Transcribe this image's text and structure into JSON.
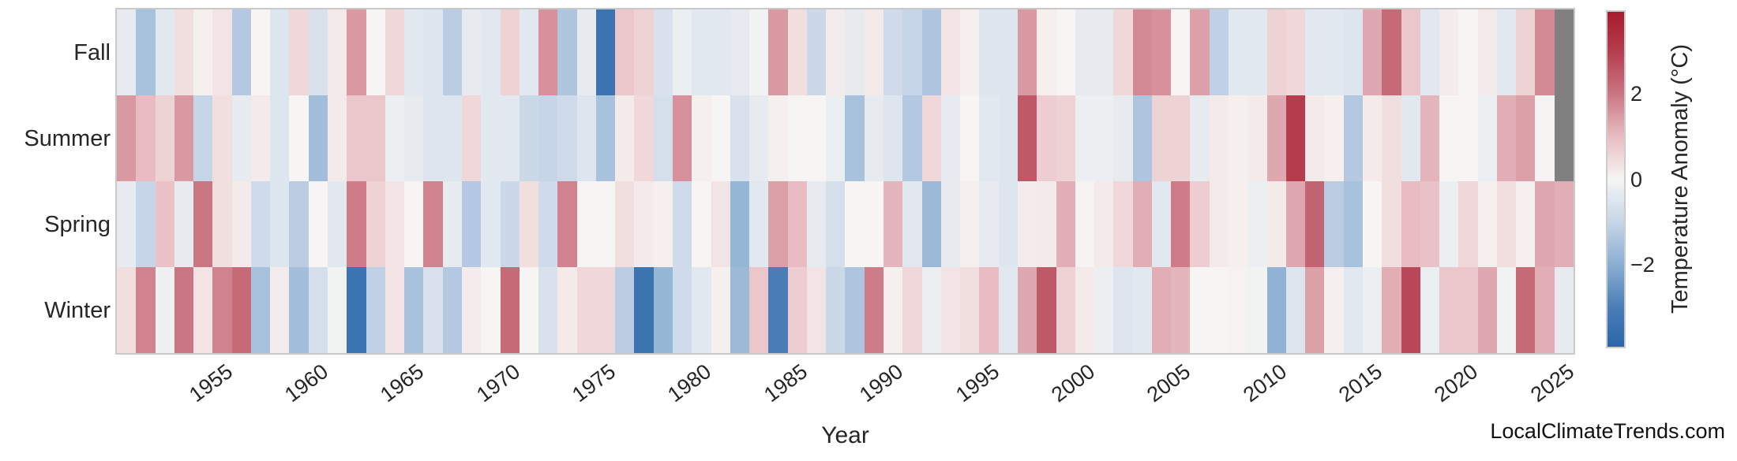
{
  "figure": {
    "background": "#ffffff",
    "text_color": "#262626",
    "frame_color": "#c9c9c9"
  },
  "chart_data": {
    "type": "heatmap",
    "title": "",
    "xlabel": "Year",
    "ylabel": "",
    "rows": [
      "Fall",
      "Summer",
      "Spring",
      "Winter"
    ],
    "year_start": 1950,
    "year_end": 2025,
    "x_tick_years": [
      1955,
      1960,
      1965,
      1970,
      1975,
      1980,
      1985,
      1990,
      1995,
      2000,
      2005,
      2010,
      2015,
      2020,
      2025
    ],
    "grid": false,
    "nan_color": "#808080",
    "nan_meaning": "season not yet complete in 2025 (Fall, Summer)",
    "colorbar": {
      "label": "Temperature Anomaly (°C)",
      "tick_values": [
        2,
        0,
        -2
      ],
      "tick_labels": [
        "2",
        "0",
        "−2"
      ],
      "vmin": -3.9,
      "vmax": 3.9,
      "position": "right",
      "color_stops": [
        [
          -3.9,
          "#2b66aa"
        ],
        [
          -3.0,
          "#4a7db7"
        ],
        [
          -2.0,
          "#8aaed2"
        ],
        [
          -1.0,
          "#c6d5e7"
        ],
        [
          -0.4,
          "#e2e8ef"
        ],
        [
          0.0,
          "#f6f5f3"
        ],
        [
          0.4,
          "#f1dedf"
        ],
        [
          1.0,
          "#e8bcc2"
        ],
        [
          2.0,
          "#ca7582"
        ],
        [
          3.0,
          "#b43c4d"
        ],
        [
          3.9,
          "#a81b2e"
        ]
      ]
    },
    "series": [
      {
        "name": "Fall",
        "values": [
          -0.3,
          -1.5,
          -0.4,
          0.4,
          0.1,
          0.3,
          -1.3,
          0,
          -0.5,
          0.5,
          -0.6,
          0.2,
          1.5,
          0,
          0.5,
          -0.4,
          -0.5,
          -1.2,
          -0.3,
          -0.4,
          0.6,
          -0.4,
          1.6,
          -1.4,
          -0.3,
          -3.4,
          0.8,
          0.6,
          -0.6,
          -0.2,
          -0.4,
          -0.4,
          -0.3,
          -0.1,
          1.5,
          0.4,
          -0.9,
          0.15,
          -0.3,
          0.2,
          -0.8,
          -1,
          -1.4,
          0.3,
          0.1,
          -0.5,
          -0.5,
          1.5,
          0.1,
          0,
          -0.3,
          -0.3,
          0.5,
          1.7,
          1.6,
          0,
          1.4,
          -1.1,
          -0.4,
          -0.4,
          0.6,
          0.5,
          -0.4,
          -0.4,
          -0.5,
          1.3,
          2.2,
          0.8,
          -0.4,
          0.15,
          0,
          0.2,
          -0.4,
          0.6,
          1.7,
          null
        ]
      },
      {
        "name": "Summer",
        "values": [
          1.5,
          1,
          0.6,
          1.5,
          -1,
          0.4,
          -0.3,
          0.2,
          -0.5,
          0,
          -1.6,
          0.2,
          0.8,
          0.8,
          -0.2,
          -0.3,
          -0.5,
          -0.5,
          0.5,
          -0.4,
          -0.4,
          -0.9,
          -1,
          -0.8,
          -0.5,
          -1.5,
          0.2,
          0.5,
          -0.7,
          1.6,
          0.1,
          0,
          -0.6,
          -0.3,
          0.1,
          0,
          0,
          -0.2,
          -1.5,
          -0.3,
          -0.5,
          -1.3,
          0.5,
          -0.3,
          0,
          -0.4,
          -0.5,
          2.5,
          0.7,
          0.6,
          -0.2,
          -0.2,
          -0.3,
          -1.4,
          0.6,
          0.6,
          -0.3,
          0.2,
          0.1,
          0.2,
          1.3,
          3,
          0.2,
          0.1,
          -1.3,
          0.2,
          0.4,
          -0.4,
          1.1,
          0,
          0,
          -0.2,
          1.2,
          1.4,
          0.05,
          null
        ]
      },
      {
        "name": "Spring",
        "values": [
          -0.3,
          -1,
          0.9,
          -0.3,
          2,
          0.4,
          0.2,
          -0.8,
          -0.5,
          -1.2,
          0,
          -0.4,
          1.9,
          0.6,
          0.3,
          0,
          1.8,
          -0.3,
          -1.3,
          -0.4,
          -0.9,
          0.4,
          -0.8,
          1.8,
          0,
          0,
          0.4,
          0.2,
          0.1,
          -0.8,
          0,
          0.3,
          -1.8,
          -0.4,
          1.4,
          1,
          -0.3,
          -0.7,
          0,
          0,
          1.1,
          -0.4,
          -1.7,
          -0.3,
          0.1,
          -0.3,
          -0.5,
          0.15,
          0.2,
          1.2,
          0.05,
          0.2,
          0.5,
          1.2,
          -0.4,
          1.9,
          0.7,
          0.2,
          0.1,
          -0.2,
          0.2,
          1.3,
          2.3,
          -1.2,
          -1.5,
          0,
          0.4,
          1,
          0.9,
          -0.2,
          0.5,
          0.1,
          0.4,
          0.1,
          1.3,
          1.2
        ]
      },
      {
        "name": "Winter",
        "values": [
          0.4,
          1.8,
          -0.15,
          2,
          0.3,
          1.8,
          2.2,
          -1.5,
          0.15,
          -1.6,
          -0.7,
          -0.1,
          -3.4,
          -1.1,
          0.3,
          -1.5,
          -0.6,
          -1.3,
          0.15,
          0,
          2.2,
          0,
          -0.6,
          0.2,
          0.5,
          0.5,
          -1.2,
          -3.4,
          -1.8,
          -0.8,
          -0.4,
          0.1,
          -1.7,
          0.8,
          -3,
          0.7,
          0.3,
          -0.9,
          -1.4,
          1.9,
          0.1,
          0.5,
          -0.2,
          0.3,
          0.4,
          1,
          -0.4,
          1.3,
          2.5,
          0.6,
          0.2,
          -0.2,
          -0.5,
          -0.4,
          1.2,
          1.1,
          0,
          0,
          0.05,
          -0.1,
          -1.9,
          -0.5,
          1.4,
          0.1,
          -0.4,
          -0.2,
          1.2,
          2.8,
          -0.2,
          0.8,
          0.8,
          1.3,
          -0.1,
          2.2,
          1.2,
          -0.3
        ]
      }
    ],
    "watermark": "LocalClimateTrends.com"
  }
}
